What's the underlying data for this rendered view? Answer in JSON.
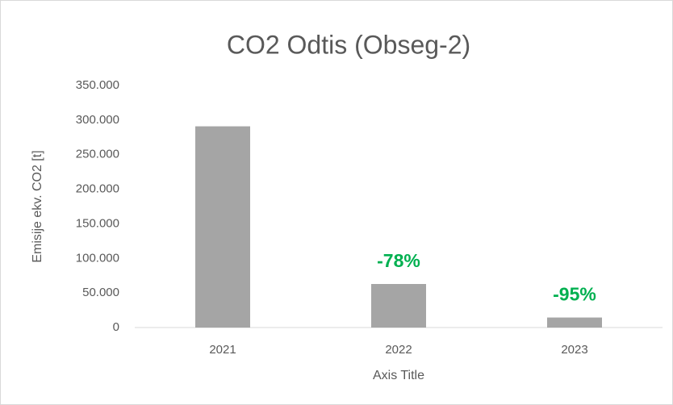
{
  "chart_data": {
    "type": "bar",
    "title": "CO2 Odtis (Obseg-2)",
    "categories": [
      "2021",
      "2022",
      "2023"
    ],
    "values": [
      291000,
      63000,
      14500
    ],
    "color": "#a5a5a5",
    "annotations": [
      null,
      "-78%",
      "-95%"
    ],
    "annotation_color": "#00b050",
    "xlabel": "Axis Title",
    "ylabel": "Emisije ekv. CO2 [t]",
    "ylim": [
      0,
      350000
    ],
    "yticks": [
      0,
      {
        "value": 50000,
        "label": "50.000"
      },
      {
        "value": 100000,
        "label": "100.000"
      },
      {
        "value": 150000,
        "label": "150.000"
      },
      {
        "value": 200000,
        "label": "200.000"
      },
      {
        "value": 250000,
        "label": "250.000"
      },
      {
        "value": 300000,
        "label": "300.000"
      },
      {
        "value": 350000,
        "label": "350.000"
      }
    ],
    "grid": false
  }
}
